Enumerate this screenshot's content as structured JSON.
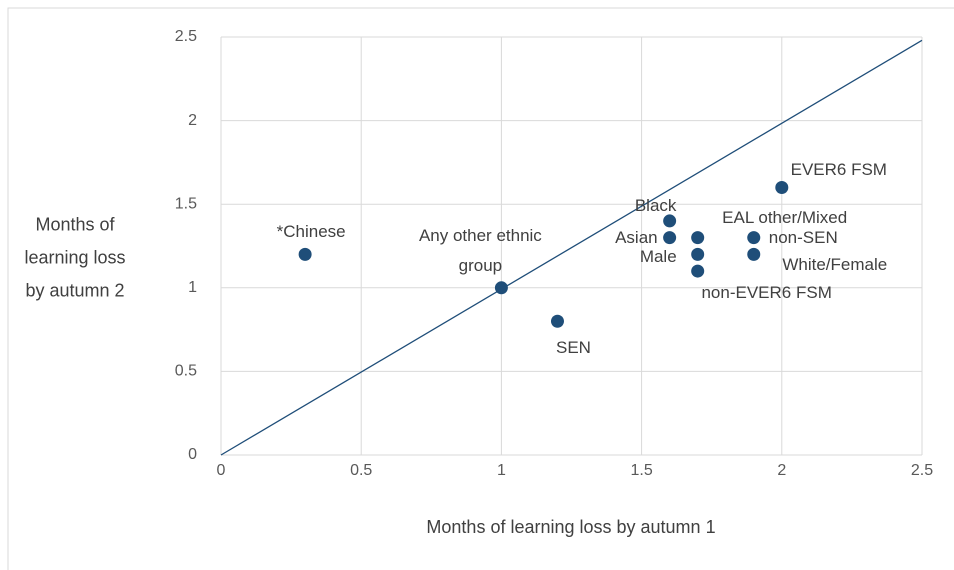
{
  "chart_data": {
    "type": "scatter",
    "x_label": "Months of learning loss by autumn 1",
    "y_label": "Months of learning loss by autumn 2",
    "labels": [
      "*Chinese",
      "Any other ethnic group",
      "SEN",
      "Black",
      "Asian",
      "EAL other/Mixed",
      "Male",
      "non-EVER6 FSM",
      "non-SEN",
      "White/Female",
      "EVER6 FSM"
    ],
    "x": [
      0.3,
      1.0,
      1.2,
      1.6,
      1.6,
      1.7,
      1.7,
      1.7,
      1.9,
      1.9,
      2.0
    ],
    "y": [
      1.2,
      1.0,
      0.8,
      1.4,
      1.3,
      1.3,
      1.2,
      1.1,
      1.3,
      1.2,
      1.6
    ],
    "color": "#1f4e79",
    "line": {
      "x": [
        0,
        2.5
      ],
      "y": [
        0,
        2.48
      ],
      "color": "#1f4e79"
    },
    "xlim": [
      0,
      2.5
    ],
    "ylim": [
      0,
      2.5
    ],
    "xticks": [
      0,
      0.5,
      1,
      1.5,
      2,
      2.5
    ],
    "yticks": [
      0,
      0.5,
      1,
      1.5,
      2,
      2.5
    ],
    "grid": true
  }
}
